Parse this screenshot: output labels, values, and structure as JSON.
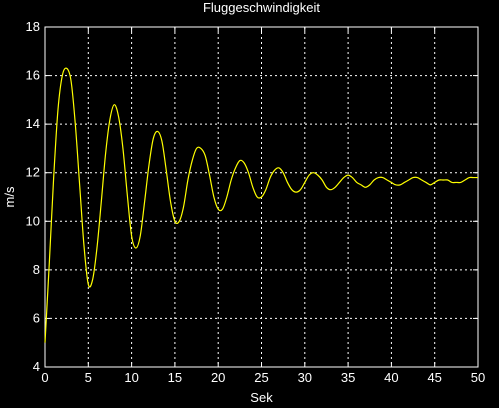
{
  "chart_data": {
    "type": "line",
    "title": "Fluggeschwindigkeit",
    "xlabel": "Sek",
    "ylabel": "m/s",
    "xlim": [
      0,
      50
    ],
    "ylim": [
      4,
      18
    ],
    "xticks": [
      "0",
      "5",
      "10",
      "15",
      "20",
      "25",
      "30",
      "35",
      "40",
      "45",
      "50"
    ],
    "yticks": [
      "4",
      "6",
      "8",
      "10",
      "12",
      "14",
      "16",
      "18"
    ],
    "grid": true,
    "colors": {
      "background": "#000000",
      "axes": "#ffffff",
      "grid": "#ffffff",
      "line": "#ffff00"
    },
    "series": [
      {
        "x": [
          0,
          0.5,
          1.0,
          1.5,
          2.0,
          2.5,
          3.0,
          3.5,
          4.0,
          4.5,
          5.0,
          5.5,
          6.0,
          6.5,
          7.0,
          7.5,
          8.0,
          8.5,
          9.0,
          9.5,
          10.0,
          10.5,
          11.0,
          11.5,
          12.0,
          12.5,
          13.0,
          13.5,
          14.0,
          14.5,
          15.0,
          15.5,
          16.0,
          16.5,
          17.0,
          17.5,
          18.0,
          18.5,
          19.0,
          19.5,
          20.0,
          20.5,
          21.0,
          21.5,
          22.0,
          22.5,
          23.0,
          23.5,
          24.0,
          24.5,
          25.0,
          25.5,
          26.0,
          26.5,
          27.0,
          27.5,
          28.0,
          28.5,
          29.0,
          29.5,
          30.0,
          30.5,
          31.0,
          31.5,
          32.0,
          32.5,
          33.0,
          33.5,
          34.0,
          34.5,
          35.0,
          35.5,
          36.0,
          36.5,
          37.0,
          37.5,
          38.0,
          38.5,
          39.0,
          39.5,
          40.0,
          40.5,
          41.0,
          41.5,
          42.0,
          42.5,
          43.0,
          43.5,
          44.0,
          44.5,
          45.0,
          45.5,
          46.0,
          46.5,
          47.0,
          47.5,
          48.0,
          48.5,
          49.0,
          49.5,
          50.0
        ],
        "y": [
          5.0,
          8.3,
          11.8,
          14.6,
          16.0,
          16.3,
          15.8,
          14.0,
          11.5,
          9.0,
          7.4,
          7.6,
          8.9,
          10.8,
          12.8,
          14.2,
          14.8,
          14.3,
          13.0,
          11.1,
          9.4,
          8.9,
          9.4,
          10.8,
          12.3,
          13.4,
          13.7,
          13.3,
          12.1,
          10.8,
          10.0,
          10.0,
          10.6,
          11.7,
          12.5,
          13.0,
          13.0,
          12.7,
          11.9,
          11.0,
          10.5,
          10.5,
          11.0,
          11.7,
          12.2,
          12.5,
          12.4,
          12.0,
          11.4,
          11.0,
          11.0,
          11.3,
          11.8,
          12.1,
          12.2,
          12.0,
          11.6,
          11.3,
          11.2,
          11.3,
          11.6,
          11.9,
          12.0,
          11.9,
          11.7,
          11.4,
          11.3,
          11.4,
          11.6,
          11.8,
          11.9,
          11.8,
          11.6,
          11.5,
          11.4,
          11.5,
          11.7,
          11.8,
          11.8,
          11.7,
          11.6,
          11.5,
          11.5,
          11.6,
          11.7,
          11.8,
          11.8,
          11.7,
          11.6,
          11.5,
          11.6,
          11.7,
          11.7,
          11.7,
          11.6,
          11.6,
          11.6,
          11.7,
          11.8,
          11.8,
          11.8
        ]
      }
    ]
  }
}
